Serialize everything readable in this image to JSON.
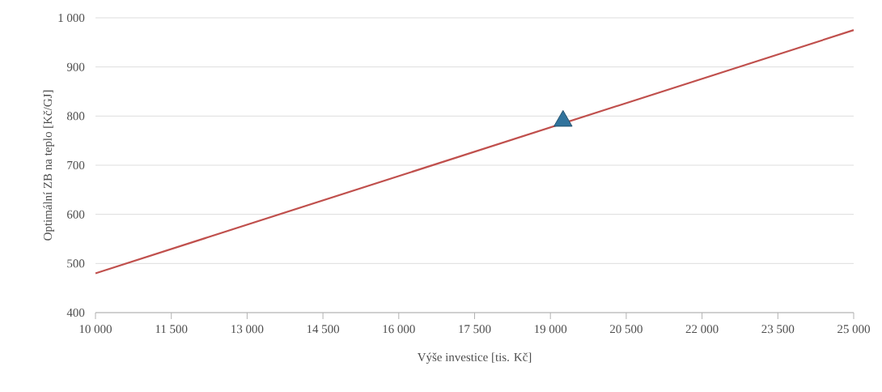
{
  "chart_data": {
    "type": "line",
    "xlabel": "Výše investice [tis. Kč]",
    "ylabel": "Optimální ZB na teplo [Kč/GJ]",
    "series": [
      {
        "color": "#c0504d",
        "x": [
          10000,
          25000
        ],
        "values": [
          480,
          975
        ],
        "marker": "none",
        "line_style": "solid"
      },
      {
        "type": "scatter",
        "color": "#31739c",
        "x": [
          19250
        ],
        "values": [
          790
        ],
        "marker": "triangle"
      }
    ],
    "xlim": [
      10000,
      25000
    ],
    "ylim": [
      400,
      1000
    ],
    "xticks": [
      {
        "value": 10000,
        "label": "10 000"
      },
      {
        "value": 11500,
        "label": "11 500"
      },
      {
        "value": 13000,
        "label": "13 000"
      },
      {
        "value": 14500,
        "label": "14 500"
      },
      {
        "value": 16000,
        "label": "16 000"
      },
      {
        "value": 17500,
        "label": "17 500"
      },
      {
        "value": 19000,
        "label": "19 000"
      },
      {
        "value": 20500,
        "label": "20 500"
      },
      {
        "value": 22000,
        "label": "22 000"
      },
      {
        "value": 23500,
        "label": "23 500"
      },
      {
        "value": 25000,
        "label": "25 000"
      }
    ],
    "yticks": [
      400,
      500,
      600,
      700,
      800,
      900,
      {
        "value": 1000,
        "label": "1 000"
      }
    ],
    "grid": "y"
  }
}
